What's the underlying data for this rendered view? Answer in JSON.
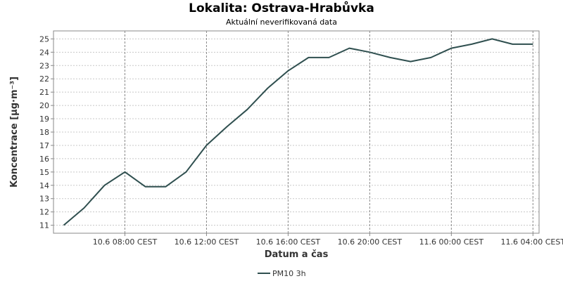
{
  "chart_data": {
    "type": "line",
    "title": "Lokalita: Ostrava-Hrabůvka",
    "subtitle": "Aktuální neverifikovaná data",
    "xlabel": "Datum a čas",
    "ylabel": "Koncentrace [µg·m⁻³]",
    "ylim": [
      10.4,
      25.6
    ],
    "y_ticks": [
      11,
      12,
      13,
      14,
      15,
      16,
      17,
      18,
      19,
      20,
      21,
      22,
      23,
      24,
      25
    ],
    "x_range_hours": [
      4.5,
      28.3
    ],
    "x_ticks": [
      {
        "hour": 8,
        "label": "10.6 08:00 CEST"
      },
      {
        "hour": 12,
        "label": "10.6 12:00 CEST"
      },
      {
        "hour": 16,
        "label": "10.6 16:00 CEST"
      },
      {
        "hour": 20,
        "label": "10.6 20:00 CEST"
      },
      {
        "hour": 24,
        "label": "11.6 00:00 CEST"
      },
      {
        "hour": 28,
        "label": "11.6 04:00 CEST"
      }
    ],
    "grid": true,
    "legend_position": "bottom",
    "series": [
      {
        "name": "PM10 3h",
        "color": "#2f4f4f",
        "x": [
          5,
          6,
          7,
          8,
          9,
          10,
          11,
          12,
          13,
          14,
          15,
          16,
          17,
          18,
          19,
          20,
          21,
          22,
          23,
          24,
          25,
          26,
          27,
          28
        ],
        "y": [
          11.0,
          12.3,
          14.0,
          15.0,
          13.9,
          13.9,
          15.0,
          17.0,
          18.4,
          19.7,
          21.3,
          22.6,
          23.6,
          23.6,
          24.3,
          24.0,
          23.6,
          23.3,
          23.6,
          24.3,
          24.6,
          25.0,
          24.6,
          24.6
        ]
      }
    ]
  }
}
